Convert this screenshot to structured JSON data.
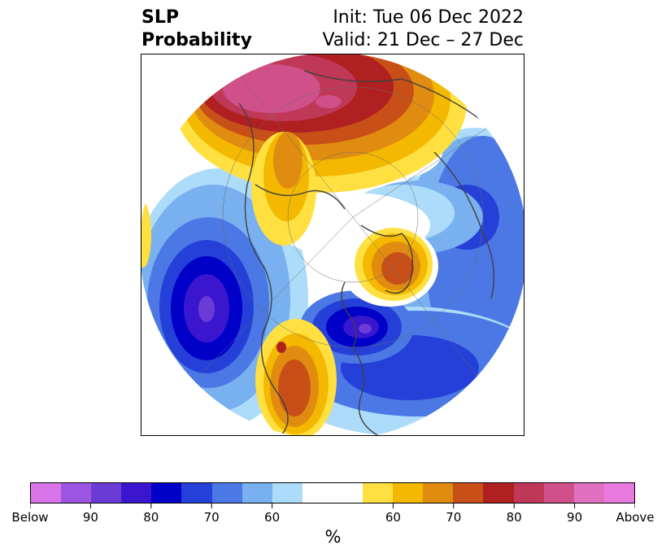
{
  "title": {
    "left_line1": "SLP",
    "left_line2": "Probability",
    "right_line1": "Init: Tue 06 Dec 2022",
    "right_line2": "Valid: 21 Dec – 27 Dec"
  },
  "colorbar": {
    "colors": [
      "#d873e8",
      "#9c55e0",
      "#6b3bd8",
      "#3a16cf",
      "#0000c8",
      "#2440d8",
      "#4c78e6",
      "#78b0f0",
      "#acdcfa",
      "#ffffff",
      "#ffffff",
      "#ffe040",
      "#f4b800",
      "#e08c10",
      "#c85018",
      "#b02020",
      "#c03858",
      "#d0508a",
      "#e070c0",
      "#e87ae0"
    ],
    "tick_labels": [
      "Below",
      "90",
      "80",
      "70",
      "60",
      "60",
      "70",
      "80",
      "90",
      "Above"
    ],
    "label": "%"
  }
}
